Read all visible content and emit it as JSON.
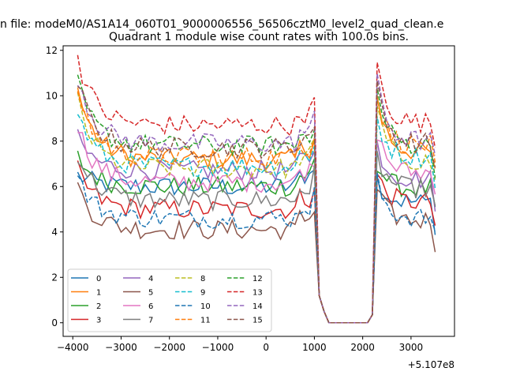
{
  "figure": {
    "suptitle": "n file: modeM0/AS1A14_060T01_9000006556_56506cztM0_level2_quad_clean.e",
    "title": "Quadrant 1 module wise count rates with 100.0s bins."
  },
  "chart_data": {
    "type": "line",
    "title": "Quadrant 1 module wise count rates with 100.0s bins.",
    "xlabel": "",
    "ylabel": "",
    "x_offset_label": "+5.107e8",
    "xlim": [
      -4200,
      3900
    ],
    "ylim": [
      -0.6,
      12.2
    ],
    "xticks": [
      -4000,
      -3000,
      -2000,
      -1000,
      0,
      1000,
      2000,
      3000
    ],
    "xtick_labels": [
      "−4000",
      "−3000",
      "−2000",
      "−1000",
      "0",
      "1000",
      "2000",
      "3000"
    ],
    "yticks": [
      0,
      2,
      4,
      6,
      8,
      10,
      12
    ],
    "ytick_labels": [
      "0",
      "2",
      "4",
      "6",
      "8",
      "10",
      "12"
    ],
    "grid": false,
    "legend_placement": "lower-left",
    "legend_ncol": 4,
    "bin_width": 100,
    "x_start": -3900,
    "x_end": 3500,
    "series": [
      {
        "name": "0",
        "color": "#1f77b4",
        "dash": "solid",
        "level_pre": 6.0,
        "level_post": 5.3,
        "start": 6.5
      },
      {
        "name": "1",
        "color": "#ff7f0e",
        "dash": "solid",
        "level_pre": 7.2,
        "level_post": 7.5,
        "start": 10.3
      },
      {
        "name": "2",
        "color": "#2ca02c",
        "dash": "solid",
        "level_pre": 6.0,
        "level_post": 5.9,
        "start": 7.3
      },
      {
        "name": "3",
        "color": "#d62728",
        "dash": "solid",
        "level_pre": 5.0,
        "level_post": 5.3,
        "start": 6.7
      },
      {
        "name": "4",
        "color": "#9467bd",
        "dash": "solid",
        "level_pre": 6.7,
        "level_post": 6.3,
        "start": 8.1
      },
      {
        "name": "5",
        "color": "#8c564b",
        "dash": "solid",
        "level_pre": 4.1,
        "level_post": 4.5,
        "start": 6.0
      },
      {
        "name": "6",
        "color": "#e377c2",
        "dash": "solid",
        "level_pre": 6.2,
        "level_post": 6.6,
        "start": 8.7
      },
      {
        "name": "7",
        "color": "#7f7f7f",
        "dash": "solid",
        "level_pre": 5.4,
        "level_post": 5.9,
        "start": 7.5
      },
      {
        "name": "8",
        "color": "#bcbd22",
        "dash": "dashed",
        "level_pre": 6.8,
        "level_post": 7.1,
        "start": 9.8
      },
      {
        "name": "9",
        "color": "#17becf",
        "dash": "dashed",
        "level_pre": 6.9,
        "level_post": 7.3,
        "start": 9.3
      },
      {
        "name": "10",
        "color": "#1f77b4",
        "dash": "dashed",
        "level_pre": 4.6,
        "level_post": 4.6,
        "start": 6.4
      },
      {
        "name": "11",
        "color": "#ff7f0e",
        "dash": "dashed",
        "level_pre": 7.3,
        "level_post": 7.8,
        "start": 10.3
      },
      {
        "name": "12",
        "color": "#2ca02c",
        "dash": "dashed",
        "level_pre": 7.8,
        "level_post": 7.8,
        "start": 10.5
      },
      {
        "name": "13",
        "color": "#d62728",
        "dash": "dashed",
        "level_pre": 8.7,
        "level_post": 8.8,
        "start": 11.7
      },
      {
        "name": "14",
        "color": "#9467bd",
        "dash": "dashed",
        "level_pre": 7.9,
        "level_post": 8.0,
        "start": 10.9
      },
      {
        "name": "15",
        "color": "#8c564b",
        "dash": "dashed",
        "level_pre": 7.7,
        "level_post": 7.9,
        "start": 10.6
      }
    ]
  }
}
